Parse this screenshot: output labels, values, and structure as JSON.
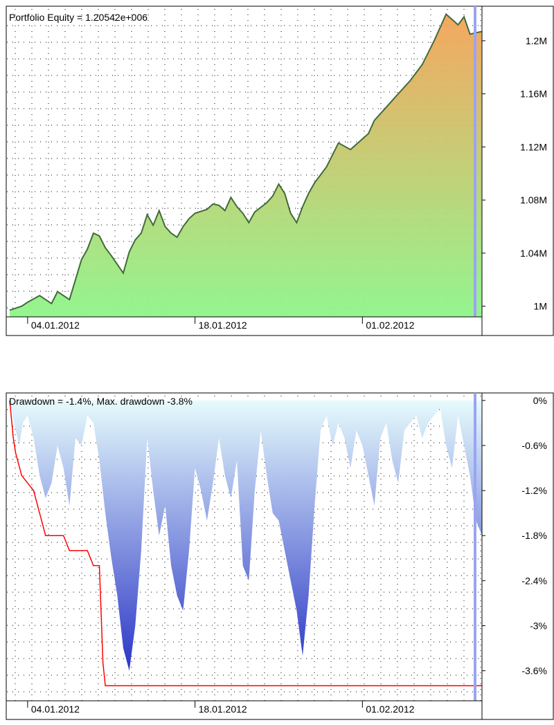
{
  "equity": {
    "caption": "Portfolio Equity = 1.20542e+006",
    "y_ticks": [
      {
        "value": 1000000,
        "label": "1M"
      },
      {
        "value": 1040000,
        "label": "1.04M"
      },
      {
        "value": 1080000,
        "label": "1.08M"
      },
      {
        "value": 1120000,
        "label": "1.12M"
      },
      {
        "value": 1160000,
        "label": "1.16M"
      },
      {
        "value": 1200000,
        "label": "1.2M"
      }
    ],
    "x_ticks": [
      {
        "day": 2,
        "label": "04.01.2012"
      },
      {
        "day": 16,
        "label": "18.01.2012"
      },
      {
        "day": 30,
        "label": "01.02.2012"
      }
    ]
  },
  "drawdown": {
    "caption": "Drawdown = -1.4%, Max. drawdown -3.8%",
    "y_ticks": [
      {
        "value": 0,
        "label": "0%"
      },
      {
        "value": -0.6,
        "label": "-0.6%"
      },
      {
        "value": -1.2,
        "label": "-1.2%"
      },
      {
        "value": -1.8,
        "label": "-1.8%"
      },
      {
        "value": -2.4,
        "label": "-2.4%"
      },
      {
        "value": -3.0,
        "label": "-3%"
      },
      {
        "value": -3.6,
        "label": "-3.6%"
      }
    ],
    "x_ticks": [
      {
        "day": 2,
        "label": "04.01.2012"
      },
      {
        "day": 16,
        "label": "18.01.2012"
      },
      {
        "day": 30,
        "label": "01.02.2012"
      }
    ]
  },
  "chart_data": [
    {
      "type": "area",
      "title": "Portfolio Equity = 1.20542e+006",
      "xlabel": "",
      "ylabel": "",
      "x_unit": "date (day offset from 02.01.2012)",
      "xlim": [
        0.5,
        40.0
      ],
      "ylim": [
        992000,
        1226000
      ],
      "grid": true,
      "x": [
        0.5,
        1.5,
        2.0,
        3.0,
        4.0,
        4.5,
        5.0,
        5.5,
        6.0,
        6.5,
        7.0,
        7.5,
        8.0,
        8.5,
        9.0,
        10.0,
        10.5,
        11.0,
        11.5,
        12.0,
        12.5,
        13.0,
        13.5,
        14.0,
        14.5,
        15.0,
        15.5,
        16.0,
        17.0,
        17.5,
        18.0,
        18.5,
        19.0,
        19.5,
        20.0,
        20.5,
        21.0,
        22.0,
        22.5,
        23.0,
        23.5,
        24.0,
        24.5,
        25.0,
        25.5,
        26.0,
        27.0,
        28.0,
        29.0,
        30.0,
        30.5,
        31.0,
        32.0,
        33.0,
        34.0,
        35.0,
        36.0,
        36.5,
        37.0,
        38.0,
        38.5,
        39.0,
        39.5,
        40.0
      ],
      "y": [
        997000,
        1000000,
        1003000,
        1008000,
        1002000,
        1011000,
        1008000,
        1005000,
        1020000,
        1035000,
        1043000,
        1055000,
        1053000,
        1044000,
        1038000,
        1025000,
        1041000,
        1050000,
        1055000,
        1069000,
        1061000,
        1072000,
        1060000,
        1055000,
        1052000,
        1060000,
        1066000,
        1070000,
        1073000,
        1077000,
        1076000,
        1072000,
        1082000,
        1075000,
        1070000,
        1063000,
        1071000,
        1078000,
        1083000,
        1092000,
        1085000,
        1070000,
        1063000,
        1075000,
        1085000,
        1093000,
        1105000,
        1123000,
        1118000,
        1126000,
        1130000,
        1140000,
        1150000,
        1160000,
        1170000,
        1182000,
        1200000,
        1210000,
        1220000,
        1212000,
        1218000,
        1205000,
        1206000,
        1207000
      ]
    },
    {
      "type": "area",
      "title": "Drawdown = -1.4%, Max. drawdown -3.8%",
      "xlabel": "",
      "ylabel": "",
      "x_unit": "date (day offset from 02.01.2012)",
      "xlim": [
        0.5,
        40.0
      ],
      "ylim": [
        -4.0,
        0.1
      ],
      "grid": true,
      "series": [
        {
          "x": [
            0.5,
            1.0,
            1.3,
            1.6,
            2.0,
            2.5,
            3.0,
            3.5,
            4.0,
            4.5,
            5.0,
            5.5,
            6.0,
            6.5,
            7.0,
            7.5,
            8.0,
            8.5,
            9.0,
            9.5,
            10.0,
            10.5,
            11.0,
            11.5,
            12.0,
            12.5,
            13.0,
            13.5,
            14.0,
            14.5,
            15.0,
            15.5,
            16.0,
            16.5,
            17.0,
            17.5,
            18.0,
            18.5,
            19.0,
            19.5,
            20.0,
            20.5,
            21.0,
            21.5,
            22.0,
            22.5,
            23.0,
            23.5,
            24.0,
            24.5,
            25.0,
            25.5,
            26.0,
            26.5,
            27.0,
            27.5,
            28.0,
            28.5,
            29.0,
            29.5,
            30.0,
            30.5,
            31.0,
            31.5,
            32.0,
            32.5,
            33.0,
            33.5,
            34.0,
            34.5,
            35.0,
            35.5,
            36.0,
            36.5,
            37.0,
            37.5,
            38.0,
            38.5,
            39.0,
            39.5,
            40.0
          ],
          "y": [
            0,
            -0.4,
            -0.6,
            -0.3,
            -0.2,
            -0.5,
            -1.0,
            -1.3,
            -1.1,
            -0.6,
            -0.9,
            -1.4,
            -0.5,
            -0.6,
            -0.2,
            -0.3,
            -0.8,
            -1.5,
            -2.1,
            -2.6,
            -3.3,
            -3.6,
            -3.0,
            -2.0,
            -0.5,
            -1.2,
            -1.8,
            -1.4,
            -2.2,
            -2.6,
            -2.8,
            -2.0,
            -0.9,
            -1.2,
            -1.6,
            -1.1,
            -0.5,
            -1.0,
            -1.3,
            -0.8,
            -2.2,
            -2.4,
            -1.2,
            -0.4,
            -1.0,
            -1.5,
            -1.6,
            -2.0,
            -2.4,
            -2.8,
            -3.4,
            -2.6,
            -1.4,
            -0.4,
            -0.2,
            -0.6,
            -0.3,
            -0.5,
            -0.9,
            -0.4,
            -0.6,
            -1.0,
            -1.4,
            -0.5,
            -0.3,
            -0.8,
            -1.1,
            -0.4,
            -0.3,
            -0.2,
            -0.5,
            -0.3,
            -0.2,
            -0.1,
            -0.6,
            -0.9,
            -0.2,
            -0.6,
            -1.0,
            -1.6,
            -1.8
          ]
        },
        {
          "x": [
            0.5,
            0.8,
            1.0,
            1.5,
            2.0,
            2.5,
            3.0,
            3.5,
            5.0,
            5.5,
            7.0,
            7.5,
            8.0,
            8.3,
            8.5,
            40.0
          ],
          "y": [
            0,
            -0.5,
            -0.7,
            -1.0,
            -1.1,
            -1.2,
            -1.5,
            -1.8,
            -1.8,
            -2.0,
            -2.0,
            -2.2,
            -2.2,
            -3.5,
            -3.8,
            -3.8
          ]
        }
      ]
    }
  ],
  "colors": {
    "equity_line": "#3f6b3a",
    "equity_fill_top": "#f4a357",
    "equity_fill_bottom": "#8ef58a",
    "drawdown_fill_top": "#e6fbfc",
    "drawdown_fill_bottom": "#2b36c6",
    "max_drawdown_line": "#ff0000",
    "cursor_band": "#9aa4f2"
  }
}
